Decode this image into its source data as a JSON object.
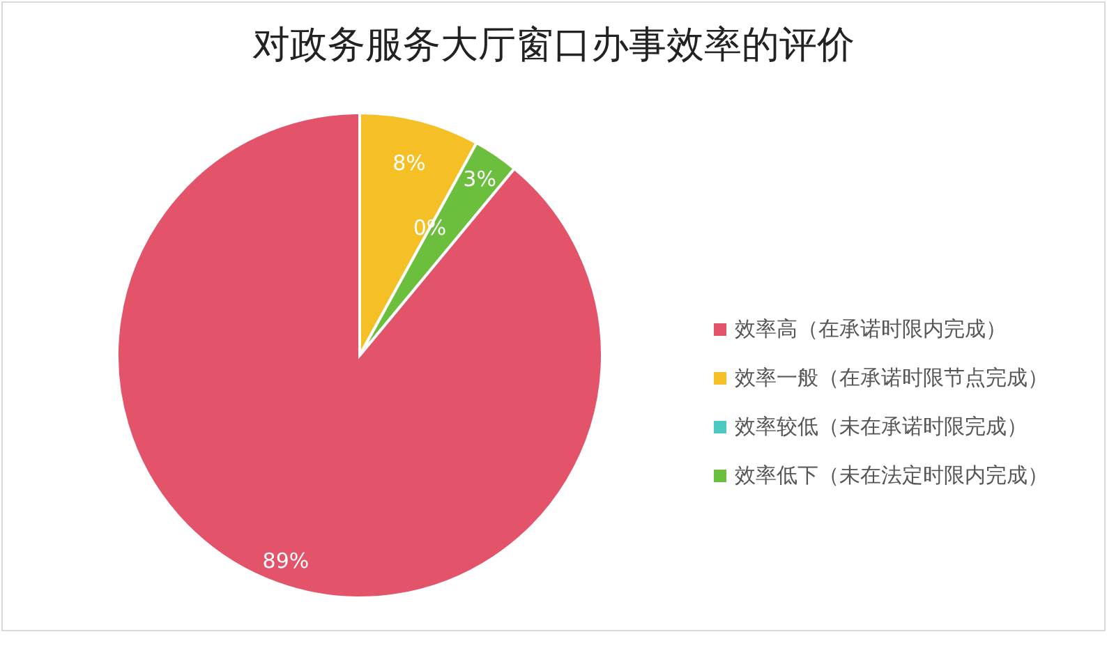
{
  "chart_data": {
    "type": "pie",
    "title": "对政务服务大厅窗口办事效率的评价",
    "categories": [
      "效率高（在承诺时限内完成）",
      "效率一般（在承诺时限节点完成）",
      "效率较低（未在承诺时限完成）",
      "效率低下（未在法定时限内完成）"
    ],
    "values": [
      89,
      8,
      0,
      3
    ],
    "colors": [
      "#e3536a",
      "#f5c026",
      "#4cc9c0",
      "#6cbf3c"
    ],
    "value_labels": [
      "89%",
      "8%",
      "0%",
      "3%"
    ],
    "legend": "right"
  }
}
